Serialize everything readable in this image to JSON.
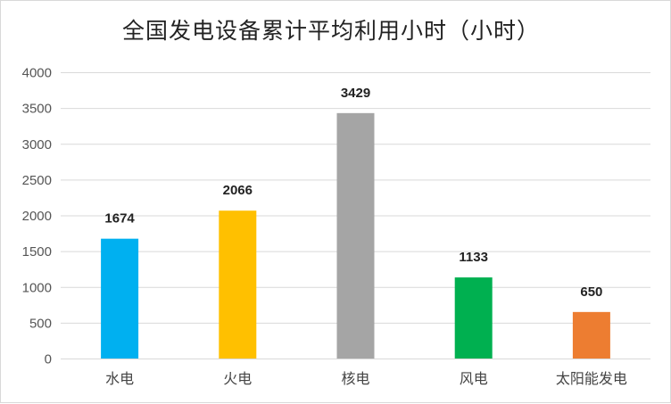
{
  "chart_data": {
    "type": "bar",
    "title": "全国发电设备累计平均利用小时（小时）",
    "categories": [
      "水电",
      "火电",
      "核电",
      "风电",
      "太阳能发电"
    ],
    "values": [
      1674,
      2066,
      3429,
      1133,
      650
    ],
    "colors": [
      "#00b0f0",
      "#ffc000",
      "#a5a5a5",
      "#00b050",
      "#ed7d31"
    ],
    "ylim": [
      0,
      4000
    ],
    "yticks": [
      0,
      500,
      1000,
      1500,
      2000,
      2500,
      3000,
      3500,
      4000
    ],
    "grid": true,
    "data_labels": true,
    "gridline_color": "#d9d9d9"
  }
}
